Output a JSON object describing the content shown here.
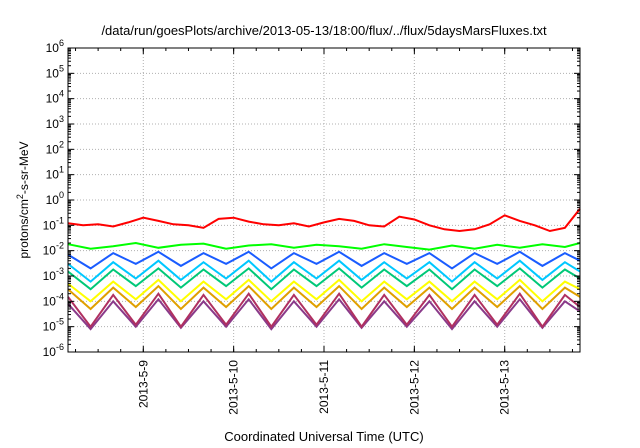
{
  "chart_data": {
    "type": "line",
    "title": "/data/run/goesPlots/archive/2013-05-13/18:00/flux/../flux/5daysMarsFluxes.txt",
    "xlabel": "Coordinated Universal Time (UTC)",
    "ylabel_parts": {
      "base": "protons/cm",
      "exp": "2",
      "rest": "-s-sr-MeV"
    },
    "xlim": [
      "2013-05-08 04:00",
      "2013-05-13 20:00"
    ],
    "ylim": [
      1e-06,
      1000000.0
    ],
    "yscale": "log",
    "grid": true,
    "x_ticks": [
      "2013-5-9",
      "2013-5-10",
      "2013-5-11",
      "2013-5-12",
      "2013-5-13"
    ],
    "y_ticks": [
      {
        "base": "10",
        "exp": "-6"
      },
      {
        "base": "10",
        "exp": "-5"
      },
      {
        "base": "10",
        "exp": "-4"
      },
      {
        "base": "10",
        "exp": "-3"
      },
      {
        "base": "10",
        "exp": "-2"
      },
      {
        "base": "10",
        "exp": "-1"
      },
      {
        "base": "10",
        "exp": "0"
      },
      {
        "base": "10",
        "exp": "1"
      },
      {
        "base": "10",
        "exp": "2"
      },
      {
        "base": "10",
        "exp": "3"
      },
      {
        "base": "10",
        "exp": "4"
      },
      {
        "base": "10",
        "exp": "5"
      },
      {
        "base": "10",
        "exp": "6"
      }
    ],
    "series": [
      {
        "color": "#ff0000",
        "x": [
          "2013-05-08 04:00",
          "2013-05-08 08:00",
          "2013-05-08 12:00",
          "2013-05-08 16:00",
          "2013-05-08 20:00",
          "2013-05-09 00:00",
          "2013-05-09 04:00",
          "2013-05-09 08:00",
          "2013-05-09 12:00",
          "2013-05-09 16:00",
          "2013-05-09 20:00",
          "2013-05-10 00:00",
          "2013-05-10 04:00",
          "2013-05-10 08:00",
          "2013-05-10 12:00",
          "2013-05-10 16:00",
          "2013-05-10 20:00",
          "2013-05-11 00:00",
          "2013-05-11 04:00",
          "2013-05-11 08:00",
          "2013-05-11 12:00",
          "2013-05-11 16:00",
          "2013-05-11 20:00",
          "2013-05-12 00:00",
          "2013-05-12 04:00",
          "2013-05-12 08:00",
          "2013-05-12 12:00",
          "2013-05-12 16:00",
          "2013-05-12 20:00",
          "2013-05-13 00:00",
          "2013-05-13 04:00",
          "2013-05-13 08:00",
          "2013-05-13 12:00",
          "2013-05-13 16:00",
          "2013-05-13 20:00"
        ],
        "y": [
          0.12,
          0.1,
          0.11,
          0.09,
          0.13,
          0.2,
          0.15,
          0.11,
          0.1,
          0.08,
          0.18,
          0.2,
          0.14,
          0.11,
          0.1,
          0.12,
          0.09,
          0.13,
          0.18,
          0.15,
          0.1,
          0.09,
          0.22,
          0.17,
          0.1,
          0.07,
          0.06,
          0.07,
          0.11,
          0.25,
          0.15,
          0.1,
          0.06,
          0.08,
          0.45
        ]
      },
      {
        "color": "#00ff00",
        "x": [
          "2013-05-08 04:00",
          "2013-05-08 10:00",
          "2013-05-08 16:00",
          "2013-05-08 22:00",
          "2013-05-09 04:00",
          "2013-05-09 10:00",
          "2013-05-09 16:00",
          "2013-05-09 22:00",
          "2013-05-10 04:00",
          "2013-05-10 10:00",
          "2013-05-10 16:00",
          "2013-05-10 22:00",
          "2013-05-11 04:00",
          "2013-05-11 10:00",
          "2013-05-11 16:00",
          "2013-05-11 22:00",
          "2013-05-12 04:00",
          "2013-05-12 10:00",
          "2013-05-12 16:00",
          "2013-05-12 22:00",
          "2013-05-13 04:00",
          "2013-05-13 10:00",
          "2013-05-13 16:00",
          "2013-05-13 20:00"
        ],
        "y": [
          0.018,
          0.012,
          0.015,
          0.02,
          0.013,
          0.017,
          0.019,
          0.012,
          0.016,
          0.018,
          0.013,
          0.017,
          0.015,
          0.012,
          0.018,
          0.014,
          0.011,
          0.016,
          0.012,
          0.017,
          0.013,
          0.018,
          0.014,
          0.02
        ]
      },
      {
        "color": "#1a5cff",
        "x": [
          "2013-05-08 04:00",
          "2013-05-08 10:00",
          "2013-05-08 16:00",
          "2013-05-08 22:00",
          "2013-05-09 04:00",
          "2013-05-09 10:00",
          "2013-05-09 16:00",
          "2013-05-09 22:00",
          "2013-05-10 04:00",
          "2013-05-10 10:00",
          "2013-05-10 16:00",
          "2013-05-10 22:00",
          "2013-05-11 04:00",
          "2013-05-11 10:00",
          "2013-05-11 16:00",
          "2013-05-11 22:00",
          "2013-05-12 04:00",
          "2013-05-12 10:00",
          "2013-05-12 16:00",
          "2013-05-12 22:00",
          "2013-05-13 04:00",
          "2013-05-13 10:00",
          "2013-05-13 16:00",
          "2013-05-13 20:00"
        ],
        "y": [
          0.007,
          0.002,
          0.008,
          0.003,
          0.009,
          0.0025,
          0.008,
          0.003,
          0.009,
          0.002,
          0.008,
          0.003,
          0.009,
          0.0025,
          0.008,
          0.003,
          0.008,
          0.002,
          0.008,
          0.003,
          0.009,
          0.0025,
          0.008,
          0.004
        ]
      },
      {
        "color": "#00c8ff",
        "x": [
          "2013-05-08 04:00",
          "2013-05-08 10:00",
          "2013-05-08 16:00",
          "2013-05-08 22:00",
          "2013-05-09 04:00",
          "2013-05-09 10:00",
          "2013-05-09 16:00",
          "2013-05-09 22:00",
          "2013-05-10 04:00",
          "2013-05-10 10:00",
          "2013-05-10 16:00",
          "2013-05-10 22:00",
          "2013-05-11 04:00",
          "2013-05-11 10:00",
          "2013-05-11 16:00",
          "2013-05-11 22:00",
          "2013-05-12 04:00",
          "2013-05-12 10:00",
          "2013-05-12 16:00",
          "2013-05-12 22:00",
          "2013-05-13 04:00",
          "2013-05-13 10:00",
          "2013-05-13 16:00",
          "2013-05-13 20:00"
        ],
        "y": [
          0.003,
          0.0006,
          0.0035,
          0.0008,
          0.004,
          0.0007,
          0.0035,
          0.0008,
          0.004,
          0.0006,
          0.0035,
          0.0008,
          0.004,
          0.0007,
          0.0035,
          0.0008,
          0.0035,
          0.0006,
          0.0035,
          0.0008,
          0.004,
          0.0007,
          0.0035,
          0.0015
        ]
      },
      {
        "color": "#00c878",
        "x": [
          "2013-05-08 04:00",
          "2013-05-08 10:00",
          "2013-05-08 16:00",
          "2013-05-08 22:00",
          "2013-05-09 04:00",
          "2013-05-09 10:00",
          "2013-05-09 16:00",
          "2013-05-09 22:00",
          "2013-05-10 04:00",
          "2013-05-10 10:00",
          "2013-05-10 16:00",
          "2013-05-10 22:00",
          "2013-05-11 04:00",
          "2013-05-11 10:00",
          "2013-05-11 16:00",
          "2013-05-11 22:00",
          "2013-05-12 04:00",
          "2013-05-12 10:00",
          "2013-05-12 16:00",
          "2013-05-12 22:00",
          "2013-05-13 04:00",
          "2013-05-13 10:00",
          "2013-05-13 16:00",
          "2013-05-13 20:00"
        ],
        "y": [
          0.0015,
          0.0003,
          0.0018,
          0.0004,
          0.002,
          0.00035,
          0.0018,
          0.0004,
          0.002,
          0.0003,
          0.0018,
          0.0004,
          0.002,
          0.00035,
          0.0018,
          0.0004,
          0.0018,
          0.0003,
          0.0018,
          0.0004,
          0.002,
          0.00035,
          0.0018,
          0.0008
        ]
      },
      {
        "color": "#ffff00",
        "x": [
          "2013-05-08 04:00",
          "2013-05-08 10:00",
          "2013-05-08 16:00",
          "2013-05-08 22:00",
          "2013-05-09 04:00",
          "2013-05-09 10:00",
          "2013-05-09 16:00",
          "2013-05-09 22:00",
          "2013-05-10 04:00",
          "2013-05-10 10:00",
          "2013-05-10 16:00",
          "2013-05-10 22:00",
          "2013-05-11 04:00",
          "2013-05-11 10:00",
          "2013-05-11 16:00",
          "2013-05-11 22:00",
          "2013-05-12 04:00",
          "2013-05-12 10:00",
          "2013-05-12 16:00",
          "2013-05-12 22:00",
          "2013-05-13 04:00",
          "2013-05-13 10:00",
          "2013-05-13 16:00",
          "2013-05-13 20:00"
        ],
        "y": [
          0.0005,
          0.0001,
          0.0006,
          0.00012,
          0.0007,
          0.0001,
          0.0006,
          0.00012,
          0.0007,
          0.0001,
          0.0006,
          0.00012,
          0.0007,
          0.0001,
          0.0006,
          0.00012,
          0.0006,
          0.0001,
          0.0006,
          0.00012,
          0.0007,
          0.0001,
          0.0006,
          0.0003
        ]
      },
      {
        "color": "#e0a000",
        "x": [
          "2013-05-08 04:00",
          "2013-05-08 10:00",
          "2013-05-08 16:00",
          "2013-05-08 22:00",
          "2013-05-09 04:00",
          "2013-05-09 10:00",
          "2013-05-09 16:00",
          "2013-05-09 22:00",
          "2013-05-10 04:00",
          "2013-05-10 10:00",
          "2013-05-10 16:00",
          "2013-05-10 22:00",
          "2013-05-11 04:00",
          "2013-05-11 10:00",
          "2013-05-11 16:00",
          "2013-05-11 22:00",
          "2013-05-12 04:00",
          "2013-05-12 10:00",
          "2013-05-12 16:00",
          "2013-05-12 22:00",
          "2013-05-13 04:00",
          "2013-05-13 10:00",
          "2013-05-13 16:00",
          "2013-05-13 20:00"
        ],
        "y": [
          0.0003,
          5e-05,
          0.00035,
          6e-05,
          0.0004,
          5e-05,
          0.00035,
          6e-05,
          0.0004,
          5e-05,
          0.00035,
          6e-05,
          0.0004,
          5e-05,
          0.00035,
          6e-05,
          0.00035,
          5e-05,
          0.00035,
          6e-05,
          0.0004,
          5e-05,
          0.00035,
          0.00015
        ]
      },
      {
        "color": "#b03060",
        "x": [
          "2013-05-08 04:00",
          "2013-05-08 10:00",
          "2013-05-08 16:00",
          "2013-05-08 22:00",
          "2013-05-09 04:00",
          "2013-05-09 10:00",
          "2013-05-09 16:00",
          "2013-05-09 22:00",
          "2013-05-10 04:00",
          "2013-05-10 10:00",
          "2013-05-10 16:00",
          "2013-05-10 22:00",
          "2013-05-11 04:00",
          "2013-05-11 10:00",
          "2013-05-11 16:00",
          "2013-05-11 22:00",
          "2013-05-12 04:00",
          "2013-05-12 10:00",
          "2013-05-12 16:00",
          "2013-05-12 22:00",
          "2013-05-13 04:00",
          "2013-05-13 10:00",
          "2013-05-13 16:00",
          "2013-05-13 20:00"
        ],
        "y": [
          0.00015,
          1e-05,
          0.00018,
          1.2e-05,
          0.0002,
          1e-05,
          0.00018,
          1.2e-05,
          0.0002,
          1e-05,
          0.00018,
          1.2e-05,
          0.0002,
          1e-05,
          0.00018,
          1.2e-05,
          0.00018,
          1e-05,
          0.00018,
          1.2e-05,
          0.0002,
          1e-05,
          0.00018,
          6e-05
        ]
      },
      {
        "color": "#8a3a8a",
        "x": [
          "2013-05-08 04:00",
          "2013-05-08 10:00",
          "2013-05-08 16:00",
          "2013-05-08 22:00",
          "2013-05-09 04:00",
          "2013-05-09 10:00",
          "2013-05-09 16:00",
          "2013-05-09 22:00",
          "2013-05-10 04:00",
          "2013-05-10 10:00",
          "2013-05-10 16:00",
          "2013-05-10 22:00",
          "2013-05-11 04:00",
          "2013-05-11 10:00",
          "2013-05-11 16:00",
          "2013-05-11 22:00",
          "2013-05-12 04:00",
          "2013-05-12 10:00",
          "2013-05-12 16:00",
          "2013-05-12 22:00",
          "2013-05-13 04:00",
          "2013-05-13 10:00",
          "2013-05-13 16:00",
          "2013-05-13 20:00"
        ],
        "y": [
          8e-05,
          8e-06,
          0.0001,
          1e-05,
          0.00012,
          9e-06,
          0.0001,
          1e-05,
          0.00012,
          8e-06,
          0.0001,
          1e-05,
          0.00012,
          9e-06,
          0.0001,
          1e-05,
          0.0001,
          8e-06,
          0.0001,
          1e-05,
          0.00012,
          9e-06,
          0.0001,
          4e-05
        ]
      }
    ]
  }
}
